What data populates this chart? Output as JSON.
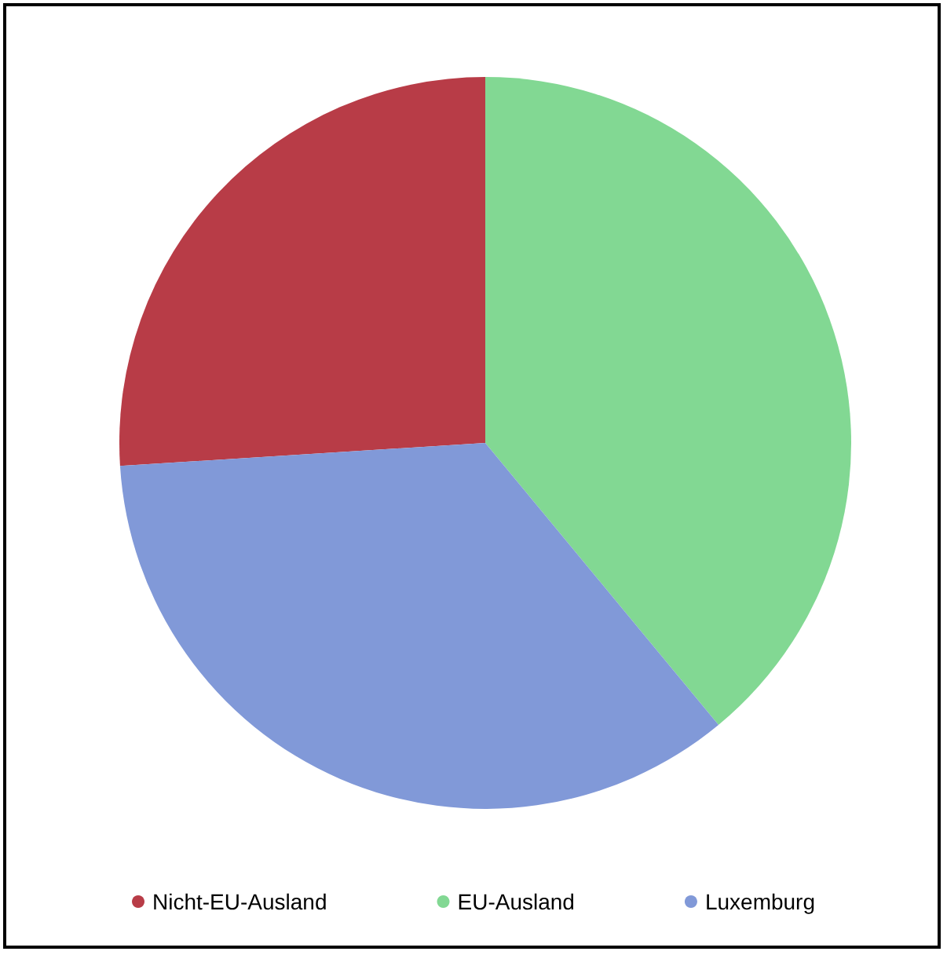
{
  "chart_data": {
    "type": "pie",
    "categories": [
      "Nicht-EU-Ausland",
      "EU-Ausland",
      "Luxemburg"
    ],
    "values": [
      26,
      39,
      35
    ],
    "colors": [
      "#b83c47",
      "#82d893",
      "#8199d8"
    ],
    "legend": "bottom"
  }
}
